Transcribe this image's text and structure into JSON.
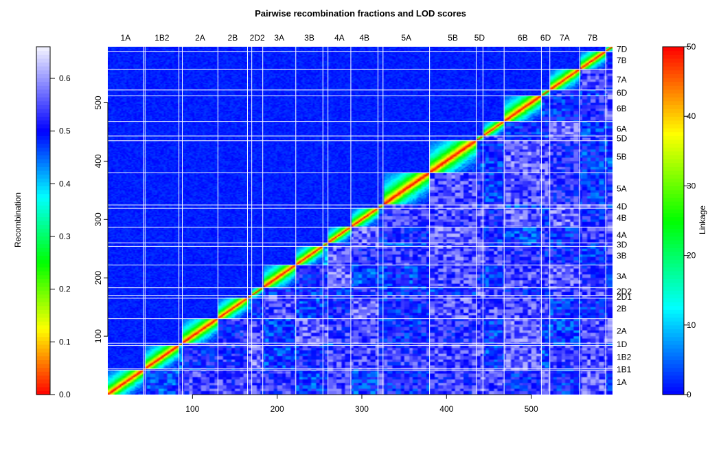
{
  "chart_data": {
    "type": "heatmap",
    "title": "Pairwise recombination fractions and LOD scores",
    "xlabel": "",
    "ylabel": "",
    "n_markers": 596,
    "xlim": [
      0,
      596
    ],
    "ylim": [
      0,
      596
    ],
    "x_ticks": [
      100,
      200,
      300,
      400,
      500
    ],
    "y_ticks": [
      100,
      200,
      300,
      400,
      500
    ],
    "upper_triangle": "recombination fraction",
    "lower_triangle": "LOD score",
    "chromosomes": [
      {
        "name": "1A",
        "start": 0,
        "end": 42,
        "top": "1A",
        "right": "1A"
      },
      {
        "name": "1B1",
        "start": 42,
        "end": 44,
        "top": "",
        "right": "1B1"
      },
      {
        "name": "1B2",
        "start": 44,
        "end": 84,
        "top": "1B2",
        "right": "1B2"
      },
      {
        "name": "1D",
        "start": 84,
        "end": 88,
        "top": "",
        "right": "1D"
      },
      {
        "name": "2A",
        "start": 88,
        "end": 130,
        "top": "2A",
        "right": "2A"
      },
      {
        "name": "2B",
        "start": 130,
        "end": 165,
        "top": "2B",
        "right": "2B"
      },
      {
        "name": "2D1",
        "start": 165,
        "end": 170,
        "top": "",
        "right": "2D1"
      },
      {
        "name": "2D2",
        "start": 170,
        "end": 183,
        "top": "2D2",
        "right": "2D2"
      },
      {
        "name": "3A",
        "start": 183,
        "end": 222,
        "top": "3A",
        "right": "3A"
      },
      {
        "name": "3B",
        "start": 222,
        "end": 254,
        "top": "3B",
        "right": "3B"
      },
      {
        "name": "3D",
        "start": 254,
        "end": 260,
        "top": "",
        "right": "3D"
      },
      {
        "name": "4A",
        "start": 260,
        "end": 287,
        "top": "4A",
        "right": "4A"
      },
      {
        "name": "4B",
        "start": 287,
        "end": 319,
        "top": "4B",
        "right": "4B"
      },
      {
        "name": "4D",
        "start": 319,
        "end": 325,
        "top": "",
        "right": "4D"
      },
      {
        "name": "5A",
        "start": 325,
        "end": 380,
        "top": "5A",
        "right": "5A"
      },
      {
        "name": "5B",
        "start": 380,
        "end": 435,
        "top": "5B",
        "right": "5B"
      },
      {
        "name": "5D",
        "start": 435,
        "end": 443,
        "top": "5D",
        "right": "5D"
      },
      {
        "name": "6A",
        "start": 443,
        "end": 468,
        "top": "",
        "right": "6A"
      },
      {
        "name": "6B",
        "start": 468,
        "end": 512,
        "top": "6B",
        "right": "6B"
      },
      {
        "name": "6D",
        "start": 512,
        "end": 522,
        "top": "6D",
        "right": "6D"
      },
      {
        "name": "7A",
        "start": 522,
        "end": 557,
        "top": "7A",
        "right": "7A"
      },
      {
        "name": "7B",
        "start": 557,
        "end": 588,
        "top": "7B",
        "right": "7B"
      },
      {
        "name": "7D",
        "start": 588,
        "end": 596,
        "top": "",
        "right": "7D"
      }
    ],
    "left_colorbar": {
      "label": "Recombination",
      "range": [
        0,
        0.66
      ],
      "ticks": [
        "0.0",
        "0.1",
        "0.2",
        "0.3",
        "0.4",
        "0.5",
        "0.6"
      ],
      "tick_values": [
        0,
        0.1,
        0.2,
        0.3,
        0.4,
        0.5,
        0.6
      ]
    },
    "right_colorbar": {
      "label": "Linkage",
      "range": [
        0,
        50
      ],
      "ticks": [
        "0",
        "10",
        "20",
        "30",
        "40",
        "50"
      ],
      "tick_values": [
        0,
        10,
        20,
        30,
        40,
        50
      ]
    }
  }
}
